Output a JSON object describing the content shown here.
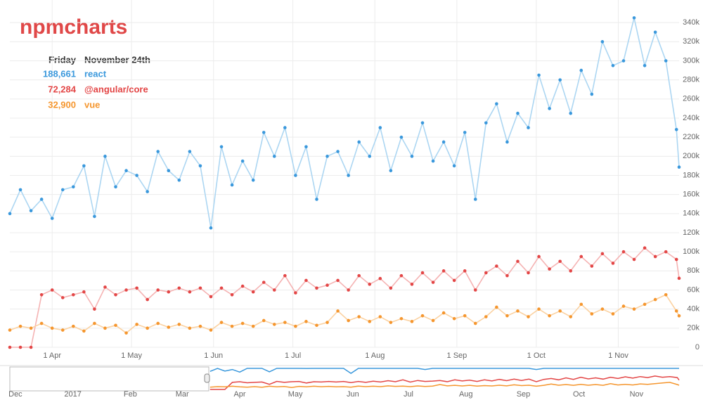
{
  "chart_data": {
    "type": "line",
    "title": "npmcharts",
    "x": [
      "2017-03-16",
      "2017-03-20",
      "2017-03-24",
      "2017-03-28",
      "2017-04-01",
      "2017-04-05",
      "2017-04-09",
      "2017-04-13",
      "2017-04-17",
      "2017-04-21",
      "2017-04-25",
      "2017-04-29",
      "2017-05-03",
      "2017-05-07",
      "2017-05-11",
      "2017-05-15",
      "2017-05-19",
      "2017-05-23",
      "2017-05-27",
      "2017-05-31",
      "2017-06-04",
      "2017-06-08",
      "2017-06-12",
      "2017-06-16",
      "2017-06-20",
      "2017-06-24",
      "2017-06-28",
      "2017-07-02",
      "2017-07-06",
      "2017-07-10",
      "2017-07-14",
      "2017-07-18",
      "2017-07-22",
      "2017-07-26",
      "2017-07-30",
      "2017-08-03",
      "2017-08-07",
      "2017-08-11",
      "2017-08-15",
      "2017-08-19",
      "2017-08-23",
      "2017-08-27",
      "2017-08-31",
      "2017-09-04",
      "2017-09-08",
      "2017-09-12",
      "2017-09-16",
      "2017-09-20",
      "2017-09-24",
      "2017-09-28",
      "2017-10-02",
      "2017-10-06",
      "2017-10-10",
      "2017-10-14",
      "2017-10-18",
      "2017-10-22",
      "2017-10-26",
      "2017-10-30",
      "2017-11-03",
      "2017-11-07",
      "2017-11-11",
      "2017-11-15",
      "2017-11-19",
      "2017-11-23",
      "2017-11-24"
    ],
    "series": [
      {
        "name": "react",
        "color": "#3a98dc",
        "line_color": "#acd6f2",
        "values": [
          140000,
          165000,
          143000,
          155000,
          135000,
          165000,
          168000,
          190000,
          137000,
          200000,
          168000,
          185000,
          180000,
          163000,
          205000,
          185000,
          175000,
          205000,
          190000,
          125000,
          210000,
          170000,
          195000,
          175000,
          225000,
          200000,
          230000,
          180000,
          210000,
          155000,
          200000,
          205000,
          180000,
          215000,
          200000,
          230000,
          185000,
          220000,
          200000,
          235000,
          195000,
          215000,
          190000,
          225000,
          155000,
          235000,
          255000,
          215000,
          245000,
          230000,
          285000,
          250000,
          280000,
          245000,
          290000,
          265000,
          320000,
          295000,
          300000,
          345000,
          295000,
          330000,
          300000,
          228000,
          188661
        ]
      },
      {
        "name": "@angular/core",
        "color": "#e34646",
        "line_color": "#f5b3b3",
        "values": [
          0,
          0,
          0,
          55000,
          60000,
          52000,
          55000,
          58000,
          40000,
          63000,
          55000,
          60000,
          62000,
          50000,
          60000,
          58000,
          62000,
          58000,
          62000,
          53000,
          62000,
          55000,
          64000,
          58000,
          68000,
          60000,
          75000,
          57000,
          70000,
          62000,
          65000,
          70000,
          60000,
          75000,
          66000,
          72000,
          62000,
          75000,
          66000,
          78000,
          68000,
          80000,
          70000,
          80000,
          60000,
          78000,
          85000,
          75000,
          90000,
          78000,
          95000,
          82000,
          90000,
          80000,
          95000,
          85000,
          98000,
          88000,
          100000,
          92000,
          104000,
          95000,
          100000,
          92000,
          72284
        ]
      },
      {
        "name": "vue",
        "color": "#f5962e",
        "line_color": "#fbd2a2",
        "values": [
          18000,
          22000,
          20000,
          25000,
          20000,
          18000,
          22000,
          17000,
          25000,
          20000,
          23000,
          15000,
          24000,
          20000,
          25000,
          21000,
          24000,
          20000,
          22000,
          18000,
          26000,
          22000,
          25000,
          22000,
          28000,
          24000,
          26000,
          22000,
          27000,
          23000,
          26000,
          38000,
          28000,
          32000,
          27000,
          32000,
          26000,
          30000,
          27000,
          33000,
          28000,
          36000,
          30000,
          33000,
          25000,
          32000,
          42000,
          33000,
          38000,
          32000,
          40000,
          33000,
          38000,
          32000,
          45000,
          35000,
          40000,
          35000,
          43000,
          40000,
          45000,
          50000,
          55000,
          38000,
          32900
        ]
      }
    ],
    "xlim": [
      "2017-03-16",
      "2017-11-24"
    ],
    "xticks": [
      {
        "value": "2017-04-01",
        "label": "1 Apr"
      },
      {
        "value": "2017-05-01",
        "label": "1 May"
      },
      {
        "value": "2017-06-01",
        "label": "1 Jun"
      },
      {
        "value": "2017-07-01",
        "label": "1 Jul"
      },
      {
        "value": "2017-08-01",
        "label": "1 Aug"
      },
      {
        "value": "2017-09-01",
        "label": "1 Sep"
      },
      {
        "value": "2017-10-01",
        "label": "1 Oct"
      },
      {
        "value": "2017-11-01",
        "label": "1 Nov"
      }
    ],
    "ylim": [
      0,
      360000
    ],
    "yticks": [
      0,
      {
        "value": 20000,
        "label": "20k"
      },
      {
        "value": 40000,
        "label": "40k"
      },
      {
        "value": 60000,
        "label": "60k"
      },
      {
        "value": 80000,
        "label": "80k"
      },
      {
        "value": 100000,
        "label": "100k"
      },
      {
        "value": 120000,
        "label": "120k"
      },
      {
        "value": 140000,
        "label": "140k"
      },
      {
        "value": 160000,
        "label": "160k"
      },
      {
        "value": 180000,
        "label": "180k"
      },
      {
        "value": 200000,
        "label": "200k"
      },
      {
        "value": 220000,
        "label": "220k"
      },
      {
        "value": 240000,
        "label": "240k"
      },
      {
        "value": 260000,
        "label": "260k"
      },
      {
        "value": 280000,
        "label": "280k"
      },
      {
        "value": 300000,
        "label": "300k"
      },
      {
        "value": 320000,
        "label": "320k"
      },
      {
        "value": 340000,
        "label": "340k"
      }
    ],
    "grid": true,
    "tooltip": {
      "weekday": "Friday",
      "date": "November 24th",
      "values": [
        "188,661",
        "72,284",
        "32,900"
      ]
    },
    "navigator": {
      "xlim": [
        "2016-11-28",
        "2017-11-24"
      ],
      "xticks": [
        {
          "value": "2016-12-01",
          "label": "Dec"
        },
        {
          "value": "2017-01-01",
          "label": "2017"
        },
        {
          "value": "2017-02-01",
          "label": "Feb"
        },
        {
          "value": "2017-03-01",
          "label": "Mar"
        },
        {
          "value": "2017-04-01",
          "label": "Apr"
        },
        {
          "value": "2017-05-01",
          "label": "May"
        },
        {
          "value": "2017-06-01",
          "label": "Jun"
        },
        {
          "value": "2017-07-01",
          "label": "Jul"
        },
        {
          "value": "2017-08-01",
          "label": "Aug"
        },
        {
          "value": "2017-09-01",
          "label": "Sep"
        },
        {
          "value": "2017-10-01",
          "label": "Oct"
        },
        {
          "value": "2017-11-01",
          "label": "Nov"
        }
      ]
    }
  }
}
